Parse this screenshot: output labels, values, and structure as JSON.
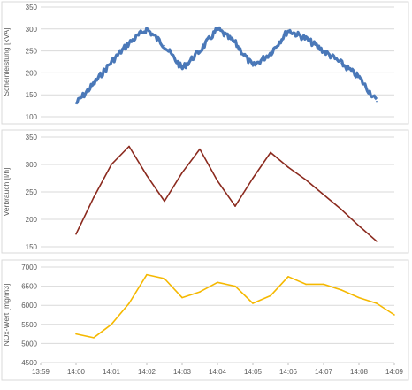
{
  "chart_data": [
    {
      "type": "line",
      "ylabel": "Scheinleistung [kVA]",
      "ylim": [
        100,
        350
      ],
      "yticks": [
        100,
        150,
        200,
        250,
        300,
        350
      ],
      "grid": true,
      "color": "#4a78b8",
      "noisy": true,
      "x": [
        "14:00",
        "14:00:30",
        "14:01",
        "14:01:30",
        "14:02",
        "14:02:30",
        "14:03",
        "14:03:30",
        "14:04",
        "14:04:30",
        "14:05",
        "14:05:30",
        "14:06",
        "14:06:30",
        "14:07",
        "14:07:30",
        "14:08",
        "14:08:30"
      ],
      "values": [
        130,
        175,
        225,
        268,
        300,
        262,
        210,
        250,
        300,
        268,
        215,
        245,
        297,
        278,
        250,
        222,
        190,
        135
      ]
    },
    {
      "type": "line",
      "ylabel": "Verbrauch [l/h]",
      "ylim": [
        150,
        350
      ],
      "yticks": [
        150,
        200,
        250,
        300,
        350
      ],
      "grid": true,
      "color": "#8b2a1e",
      "noisy": false,
      "x": [
        "14:00",
        "14:00:30",
        "14:01",
        "14:01:30",
        "14:02",
        "14:02:30",
        "14:03",
        "14:03:30",
        "14:04",
        "14:04:30",
        "14:05",
        "14:05:30",
        "14:06",
        "14:06:30",
        "14:07",
        "14:07:30",
        "14:08",
        "14:08:30"
      ],
      "values": [
        173,
        240,
        300,
        333,
        280,
        233,
        285,
        328,
        270,
        224,
        275,
        322,
        295,
        272,
        245,
        218,
        188,
        160
      ]
    },
    {
      "type": "line",
      "ylabel": "NOx-Wert [mg/m3]",
      "ylim": [
        4500,
        7000
      ],
      "yticks": [
        4500,
        5000,
        5500,
        6000,
        6500,
        7000
      ],
      "grid": true,
      "color": "#f5b800",
      "noisy": false,
      "x_tick_labels": [
        "13:59",
        "14:00",
        "14:01",
        "14:02",
        "14:03",
        "14:04",
        "14:05",
        "14:06",
        "14:07",
        "14:08",
        "14:09"
      ],
      "x": [
        "14:00",
        "14:00:30",
        "14:01",
        "14:01:30",
        "14:02",
        "14:02:30",
        "14:03",
        "14:03:30",
        "14:04",
        "14:04:30",
        "14:05",
        "14:05:30",
        "14:06",
        "14:06:30",
        "14:07",
        "14:07:30",
        "14:08",
        "14:08:30",
        "14:09"
      ],
      "values": [
        5250,
        5150,
        5500,
        6050,
        6800,
        6700,
        6200,
        6350,
        6600,
        6500,
        6050,
        6250,
        6750,
        6550,
        6550,
        6400,
        6200,
        6050,
        5750
      ]
    }
  ]
}
